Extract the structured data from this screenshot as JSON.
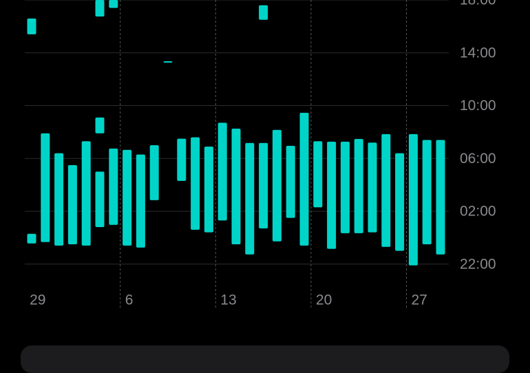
{
  "chart_data": {
    "type": "range-bar",
    "categories": [
      "29",
      null,
      null,
      null,
      null,
      null,
      null,
      "6",
      null,
      null,
      null,
      null,
      null,
      null,
      "13",
      null,
      null,
      null,
      null,
      null,
      null,
      "20",
      null,
      null,
      null,
      null,
      null,
      null,
      "27",
      null,
      null
    ],
    "series": [
      {
        "color": "#00d4c8",
        "values": [
          [
            [
              1.56,
              2.29
            ],
            [
              17.4,
              18.6
            ]
          ],
          [
            [
              1.67,
              9.9
            ]
          ],
          [
            [
              1.4,
              8.4
            ]
          ],
          [
            [
              1.5,
              7.5
            ]
          ],
          [
            [
              1.4,
              9.3
            ]
          ],
          [
            [
              2.8,
              7.0
            ],
            [
              9.9,
              11.1
            ],
            [
              18.75,
              20
            ]
          ],
          [
            [
              2.97,
              8.75
            ],
            [
              19.4,
              20
            ]
          ],
          [
            [
              1.4,
              8.65
            ]
          ],
          [
            [
              1.25,
              8.3
            ]
          ],
          [
            [
              4.84,
              9.0
            ]
          ],
          [
            [
              15.26,
              15.36
            ]
          ],
          [
            [
              6.3,
              9.5
            ]
          ],
          [
            [
              2.6,
              9.6
            ]
          ],
          [
            [
              2.4,
              8.9
            ]
          ],
          [
            [
              3.3,
              10.7
            ]
          ],
          [
            [
              1.5,
              10.26
            ]
          ],
          [
            [
              0.73,
              9.17
            ]
          ],
          [
            [
              2.7,
              9.17
            ],
            [
              18.5,
              19.6
            ]
          ],
          [
            [
              1.72,
              10.16
            ]
          ],
          [
            [
              3.5,
              8.96
            ]
          ],
          [
            [
              1.4,
              11.46
            ]
          ],
          [
            [
              4.3,
              9.3
            ]
          ],
          [
            [
              1.15,
              9.27
            ]
          ],
          [
            [
              2.34,
              9.27
            ]
          ],
          [
            [
              2.34,
              9.48
            ]
          ],
          [
            [
              2.4,
              9.2
            ]
          ],
          [
            [
              1.3,
              9.84
            ]
          ],
          [
            [
              1.0,
              8.4
            ]
          ],
          [
            [
              -0.1,
              9.84
            ]
          ],
          [
            [
              1.5,
              9.4
            ]
          ],
          [
            [
              0.73,
              9.4
            ]
          ]
        ]
      }
    ],
    "ylim": [
      -0.9,
      20
    ],
    "yticks": [
      {
        "value": 0,
        "label": "22:00"
      },
      {
        "value": 4,
        "label": "02:00"
      },
      {
        "value": 8,
        "label": "06:00"
      },
      {
        "value": 12,
        "label": "10:00"
      },
      {
        "value": 16,
        "label": "14:00"
      },
      {
        "value": 20,
        "label": "18:00"
      }
    ],
    "grid": true
  }
}
